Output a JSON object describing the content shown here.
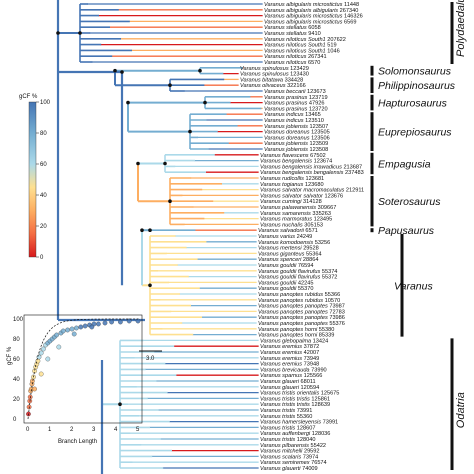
{
  "legend": {
    "title": "gCF %",
    "ticks": [
      "100",
      "80",
      "60",
      "40",
      "20",
      "0"
    ],
    "colors": [
      "#d7191c",
      "#f46d43",
      "#fdae61",
      "#fee090",
      "#abd9e9",
      "#74add1",
      "#4575b4"
    ]
  },
  "scale_bar": {
    "label": "3.0"
  },
  "clades": [
    {
      "name": "Polydaedalus",
      "rotated": true
    },
    {
      "name": "Solomonsaurus"
    },
    {
      "name": "Philippinosaurus"
    },
    {
      "name": "Hapturosaurus"
    },
    {
      "name": "Euprepiosaurus"
    },
    {
      "name": "Empagusia"
    },
    {
      "name": "Soterosaurus"
    },
    {
      "name": "Papusaurus"
    },
    {
      "name": "Varanus"
    },
    {
      "name": "Odatria",
      "rotated": true
    }
  ],
  "tips": [
    {
      "name": "Varanus albigularis microstictus",
      "id": "11448"
    },
    {
      "name": "Varanus albigularis albigularis",
      "id": "267340"
    },
    {
      "name": "Varanus albigularis microstictus",
      "id": "146326"
    },
    {
      "name": "Varanus albigularis microstictus",
      "id": "6569"
    },
    {
      "name": "Varanus stellatus",
      "id": "6058"
    },
    {
      "name": "Varanus stellatus",
      "id": "9410"
    },
    {
      "name": "Varanus niloticus South1",
      "id": "207622"
    },
    {
      "name": "Varanus niloticus South1",
      "id": "519"
    },
    {
      "name": "Varanus niloticus South1",
      "id": "1046"
    },
    {
      "name": "Varanus niloticus",
      "id": "267341"
    },
    {
      "name": "Varanus niloticus",
      "id": "6570"
    },
    {
      "name": "Varanus spinulosus",
      "id": "123429"
    },
    {
      "name": "Varanus spinulosus",
      "id": "123430"
    },
    {
      "name": "Varanus bitatawa",
      "id": "334428"
    },
    {
      "name": "Varanus olivaceus",
      "id": "322166"
    },
    {
      "name": "Varanus beccarii",
      "id": "123673"
    },
    {
      "name": "Varanus prasinus",
      "id": "123719"
    },
    {
      "name": "Varanus prasinus",
      "id": "47926"
    },
    {
      "name": "Varanus prasinus",
      "id": "123720"
    },
    {
      "name": "Varanus indicus",
      "id": "13465"
    },
    {
      "name": "Varanus indicus",
      "id": "123510"
    },
    {
      "name": "Varanus jobiensis",
      "id": "123507"
    },
    {
      "name": "Varanus doreanus",
      "id": "123505"
    },
    {
      "name": "Varanus doreanus",
      "id": "123506"
    },
    {
      "name": "Varanus jobiensis",
      "id": "123509"
    },
    {
      "name": "Varanus jobiensis",
      "id": "123508"
    },
    {
      "name": "Varanus flavescens",
      "id": "67502"
    },
    {
      "name": "Varanus bengalensis",
      "id": "123674"
    },
    {
      "name": "Varanus bengalensis irrawadicus",
      "id": "213687"
    },
    {
      "name": "Varanus bengalensis bengalensis",
      "id": "237483"
    },
    {
      "name": "Varanus rudicollis",
      "id": "123681"
    },
    {
      "name": "Varanus togianus",
      "id": "123680"
    },
    {
      "name": "Varanus salvator macromaculatus",
      "id": "212911"
    },
    {
      "name": "Varanus salvator salvator",
      "id": "123676"
    },
    {
      "name": "Varanus cumingi",
      "id": "314128"
    },
    {
      "name": "Varanus palawanensis",
      "id": "309667"
    },
    {
      "name": "Varanus samarensis",
      "id": "335263"
    },
    {
      "name": "Varanus marmoratus",
      "id": "123495"
    },
    {
      "name": "Varanus nuchalis",
      "id": "305153"
    },
    {
      "name": "Varanus salvadorii",
      "id": "6571"
    },
    {
      "name": "Varanus varius",
      "id": "24249"
    },
    {
      "name": "Varanus komodoensis",
      "id": "53256"
    },
    {
      "name": "Varanus mertensi",
      "id": "29528"
    },
    {
      "name": "Varanus giganteus",
      "id": "55364"
    },
    {
      "name": "Varanus spenceri",
      "id": "28864"
    },
    {
      "name": "Varanus gouldii",
      "id": "76594"
    },
    {
      "name": "Varanus gouldii flavirufus",
      "id": "55374"
    },
    {
      "name": "Varanus gouldii flavirufus",
      "id": "55372"
    },
    {
      "name": "Varanus gouldii",
      "id": "42245"
    },
    {
      "name": "Varanus gouldii",
      "id": "55370"
    },
    {
      "name": "Varanus panoptes rubidus",
      "id": "55366"
    },
    {
      "name": "Varanus panoptes rubidus",
      "id": "10570"
    },
    {
      "name": "Varanus panoptes panoptes",
      "id": "73987"
    },
    {
      "name": "Varanus panoptes panoptes",
      "id": "72783"
    },
    {
      "name": "Varanus panoptes panoptes",
      "id": "73986"
    },
    {
      "name": "Varanus panoptes panoptes",
      "id": "55376"
    },
    {
      "name": "Varanus panoptes horni",
      "id": "55380"
    },
    {
      "name": "Varanus panoptes horni",
      "id": "85339"
    },
    {
      "name": "Varanus glebopalma",
      "id": "13424"
    },
    {
      "name": "Varanus eremius",
      "id": "37872"
    },
    {
      "name": "Varanus eremius",
      "id": "42007"
    },
    {
      "name": "Varanus eremius",
      "id": "73949"
    },
    {
      "name": "Varanus eremius",
      "id": "73948"
    },
    {
      "name": "Varanus brevicauda",
      "id": "73990"
    },
    {
      "name": "Varanus sparnus",
      "id": "125566"
    },
    {
      "name": "Varanus glaueri",
      "id": "68011"
    },
    {
      "name": "Varanus glaueri",
      "id": "120594"
    },
    {
      "name": "Varanus tristis orientalis",
      "id": "125675"
    },
    {
      "name": "Varanus tristis tristis",
      "id": "125861"
    },
    {
      "name": "Varanus tristis tristis",
      "id": "128639"
    },
    {
      "name": "Varanus tristis",
      "id": "73991"
    },
    {
      "name": "Varanus tristis",
      "id": "55360"
    },
    {
      "name": "Varanus hamersleyensis",
      "id": "73991"
    },
    {
      "name": "Varanus tristis",
      "id": "128607"
    },
    {
      "name": "Varanus auffenbergi",
      "id": "128036"
    },
    {
      "name": "Varanus tristis",
      "id": "128040"
    },
    {
      "name": "Varanus pilbarensis",
      "id": "55422"
    },
    {
      "name": "Varanus mitchelli",
      "id": "29592"
    },
    {
      "name": "Varanus scalaris",
      "id": "73974"
    },
    {
      "name": "Varanus semiremex",
      "id": "76574"
    },
    {
      "name": "Varanus glauerti",
      "id": "74009"
    }
  ],
  "inset": {
    "xlabel": "Branch Length",
    "ylabel": "gCF %",
    "xticks": [
      "0",
      "1",
      "2",
      "3",
      "4",
      "5"
    ],
    "yticks": [
      "100",
      "80",
      "60",
      "40",
      "20",
      "0"
    ],
    "chart_data": {
      "type": "scatter",
      "title": "",
      "xlabel": "Branch Length",
      "ylabel": "gCF %",
      "xlim": [
        0,
        5
      ],
      "ylim": [
        0,
        100
      ],
      "x": [
        0.02,
        0.05,
        0.08,
        0.1,
        0.12,
        0.15,
        0.18,
        0.2,
        0.25,
        0.3,
        0.35,
        0.4,
        0.45,
        0.5,
        0.6,
        0.7,
        0.8,
        0.9,
        1.0,
        1.1,
        1.2,
        1.3,
        1.5,
        1.6,
        1.8,
        2.0,
        2.2,
        2.4,
        2.6,
        2.8,
        3.0,
        3.2,
        3.5,
        3.8,
        4.2,
        4.6,
        5.0,
        0.3,
        0.6,
        0.9,
        1.4,
        2.1,
        2.9
      ],
      "y": [
        5,
        12,
        18,
        22,
        28,
        30,
        35,
        38,
        42,
        48,
        52,
        55,
        58,
        62,
        66,
        70,
        74,
        76,
        78,
        80,
        82,
        84,
        86,
        88,
        89,
        90,
        91,
        92,
        93,
        94,
        95,
        95,
        96,
        97,
        97,
        98,
        98,
        30,
        45,
        60,
        72,
        85,
        92
      ]
    }
  }
}
